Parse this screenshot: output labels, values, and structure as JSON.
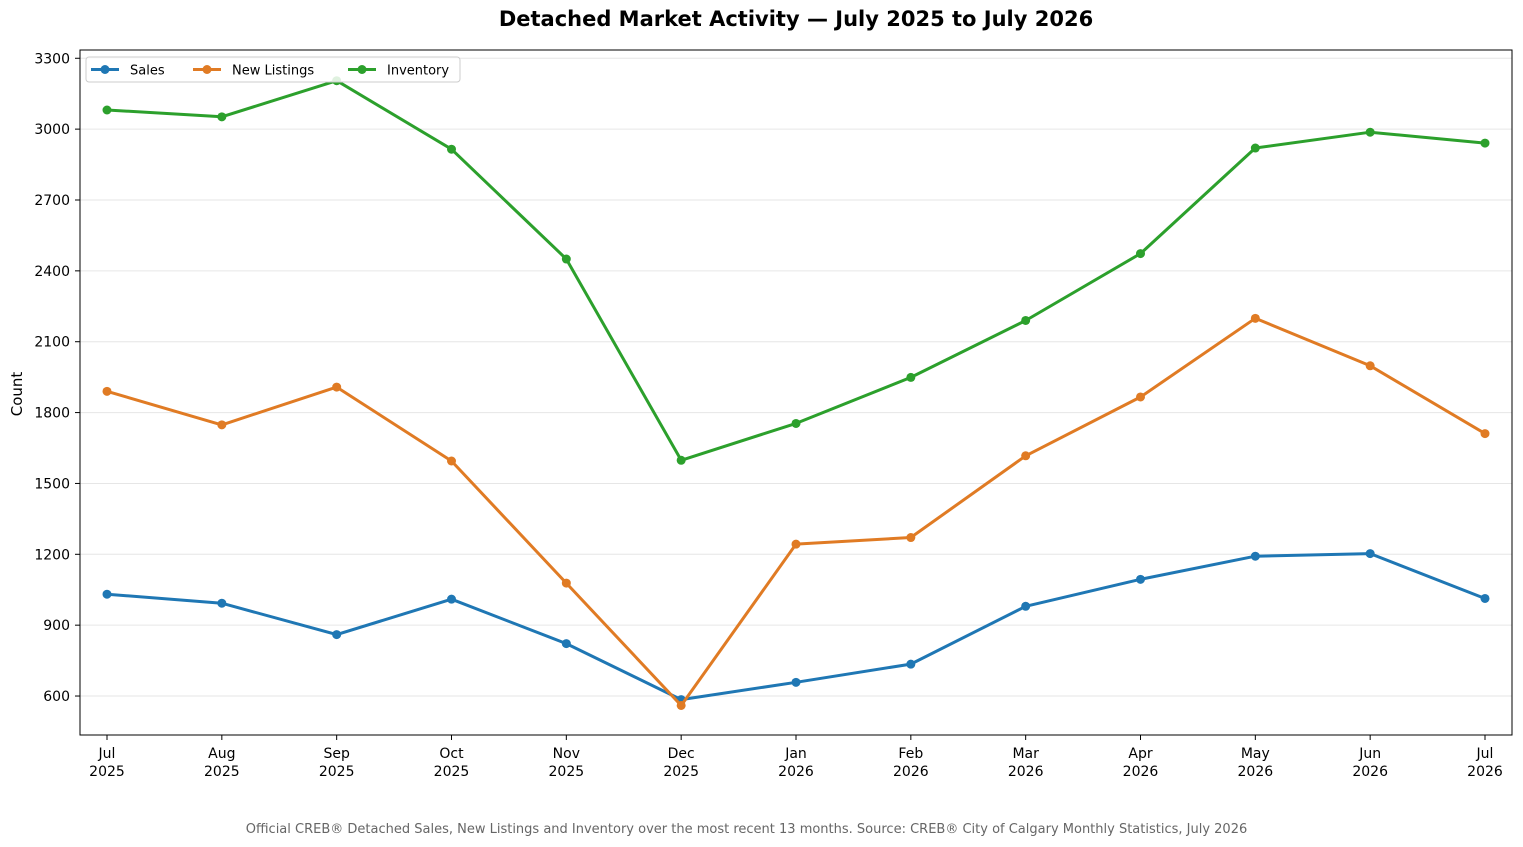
{
  "chart_data": {
    "type": "line",
    "title": "Detached Market Activity — July 2025 to July 2026",
    "ylabel": "Count",
    "xlabel": "",
    "ylim": [
      435,
      3335
    ],
    "yticks": [
      600,
      900,
      1200,
      1500,
      1800,
      2100,
      2400,
      2700,
      3000,
      3300
    ],
    "categories": [
      [
        "Jul",
        "2025"
      ],
      [
        "Aug",
        "2025"
      ],
      [
        "Sep",
        "2025"
      ],
      [
        "Oct",
        "2025"
      ],
      [
        "Nov",
        "2025"
      ],
      [
        "Dec",
        "2025"
      ],
      [
        "Jan",
        "2026"
      ],
      [
        "Feb",
        "2026"
      ],
      [
        "Mar",
        "2026"
      ],
      [
        "Apr",
        "2026"
      ],
      [
        "May",
        "2026"
      ],
      [
        "Jun",
        "2026"
      ],
      [
        "Jul",
        "2026"
      ]
    ],
    "grid": "horizontal",
    "legend": "top-left",
    "series": [
      {
        "name": "Sales",
        "color": "#1f77b4",
        "values": [
          1031,
          993,
          860,
          1010,
          822,
          585,
          658,
          735,
          980,
          1094,
          1192,
          1203,
          1013
        ]
      },
      {
        "name": "New Listings",
        "color": "#e07b24",
        "values": [
          1890,
          1748,
          1908,
          1595,
          1078,
          560,
          1243,
          1271,
          1617,
          1866,
          2199,
          1998,
          1711
        ]
      },
      {
        "name": "Inventory",
        "color": "#2ca02c",
        "values": [
          3081,
          3052,
          3205,
          2915,
          2450,
          1598,
          1754,
          1949,
          2190,
          2473,
          2920,
          2987,
          2941
        ]
      }
    ]
  },
  "caption": "Official CREB® Detached Sales, New Listings and Inventory over the most recent 13 months.  Source: CREB® City of Calgary Monthly Statistics, July 2026"
}
